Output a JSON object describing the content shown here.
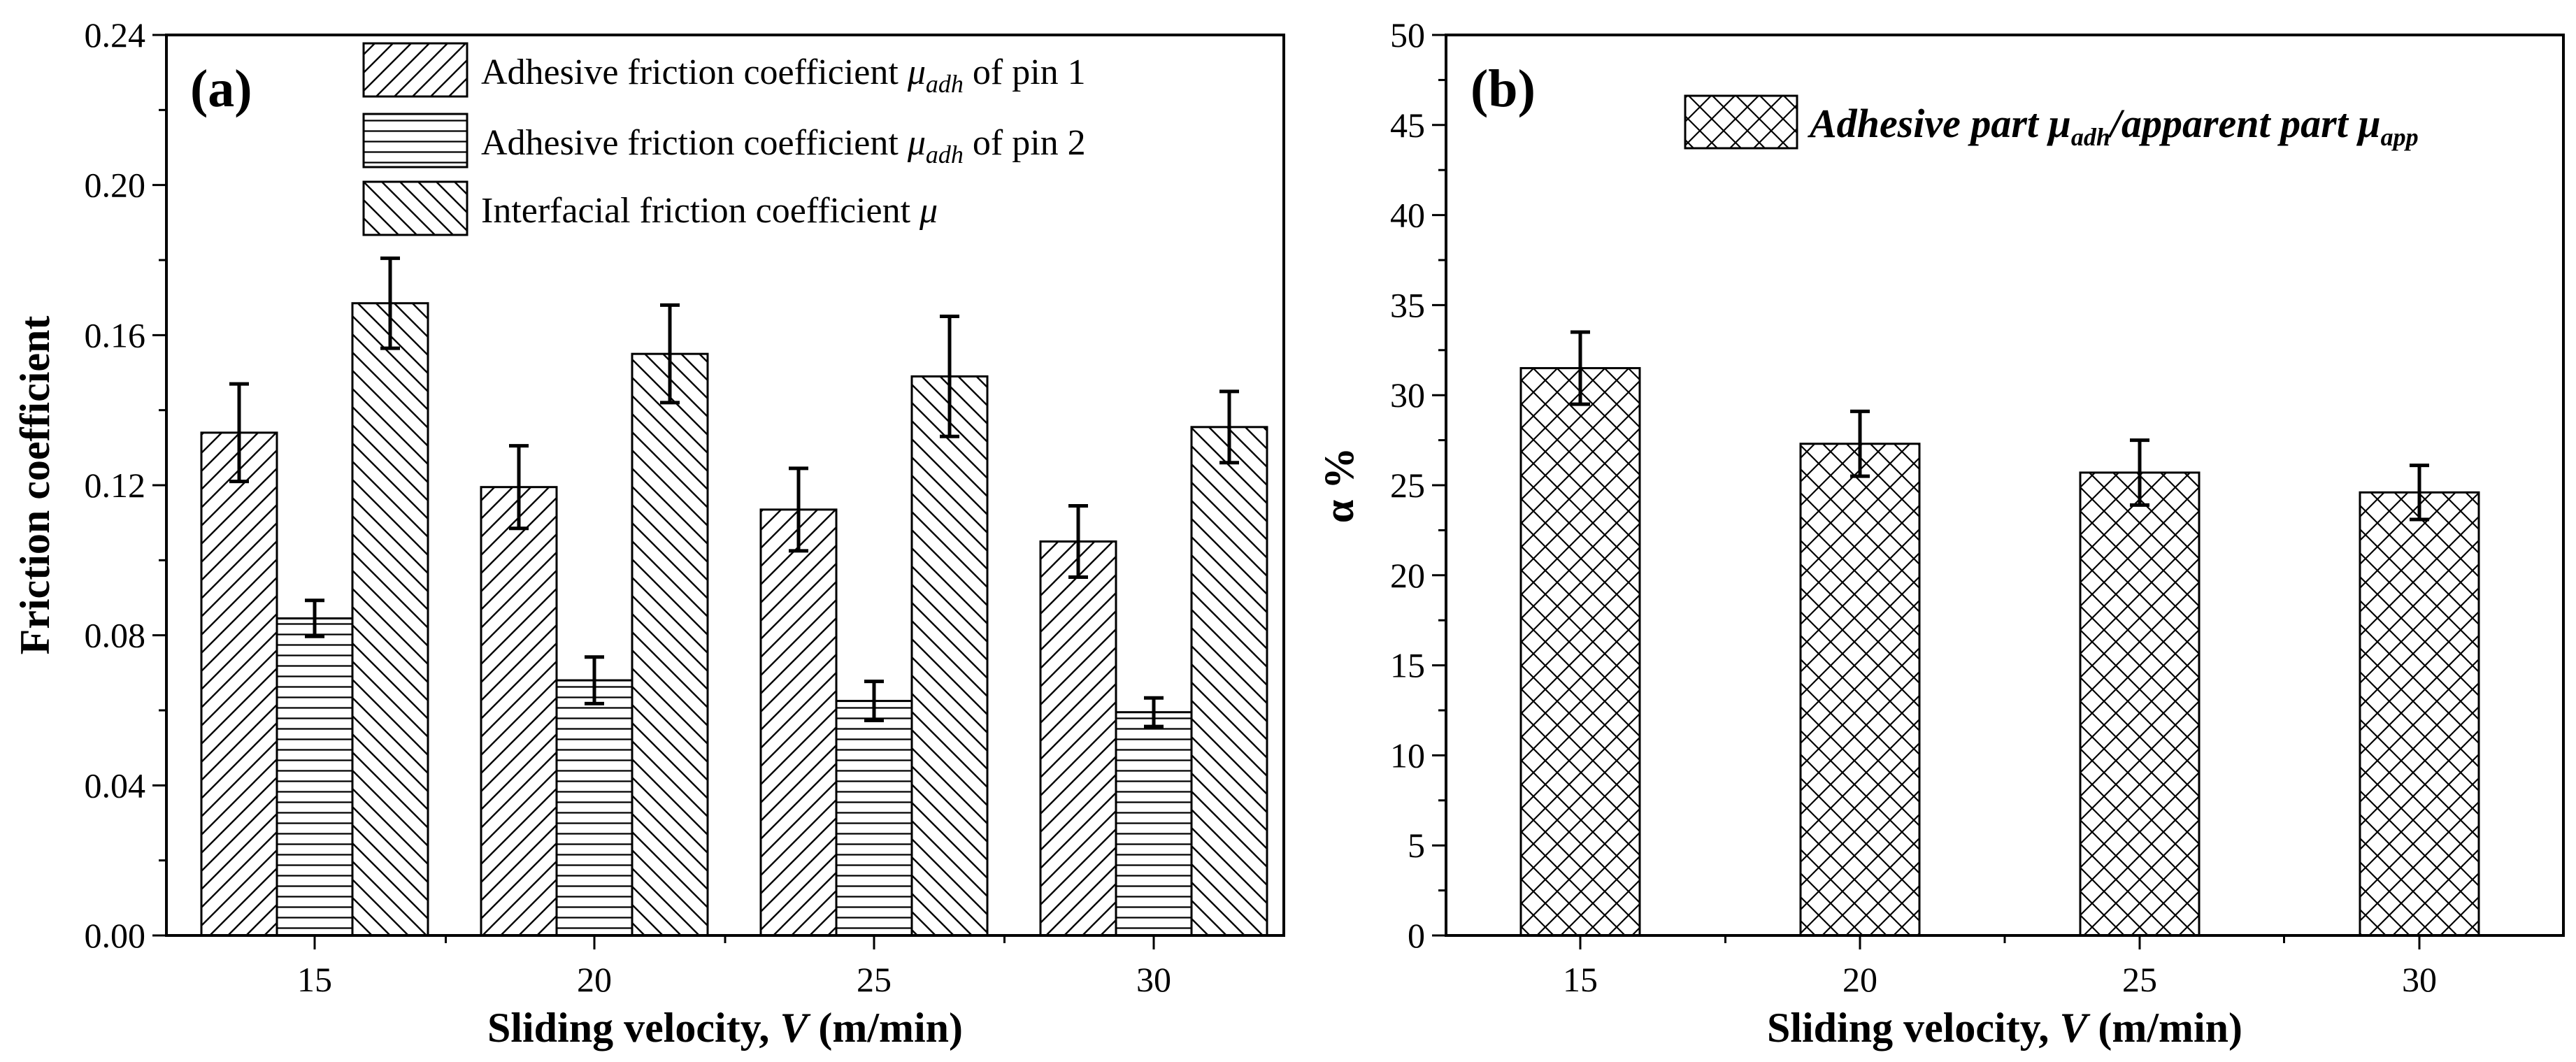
{
  "chart_data": [
    {
      "panel": "(a)",
      "type": "bar",
      "xlabel_prefix": "Sliding velocity, ",
      "xlabel_var": "V",
      "xlabel_suffix": " (m/min)",
      "ylabel": "Friction coefficient",
      "categories": [
        "15",
        "20",
        "25",
        "30"
      ],
      "ylim": [
        0,
        0.24
      ],
      "yticks": [
        "0.00",
        "0.04",
        "0.08",
        "0.12",
        "0.16",
        "0.20",
        "0.24"
      ],
      "legend_position": "top-right",
      "series": [
        {
          "name": "Adhesive friction coefficient μadh of pin 1",
          "legend_text": "Adhesive friction coefficient ",
          "legend_symbol": "μ",
          "legend_sub": "adh",
          "legend_tail": " of pin 1",
          "pattern": "diagonal-up",
          "values": [
            0.134,
            0.1195,
            0.1135,
            0.105
          ],
          "errors": [
            0.013,
            0.011,
            0.011,
            0.0095
          ]
        },
        {
          "name": "Adhesive friction coefficient μadh of pin 2",
          "legend_text": "Adhesive friction coefficient ",
          "legend_symbol": "μ",
          "legend_sub": "adh",
          "legend_tail": " of pin 2",
          "pattern": "horizontal",
          "values": [
            0.0845,
            0.068,
            0.0625,
            0.0595
          ],
          "errors": [
            0.0048,
            0.0062,
            0.0052,
            0.0038
          ]
        },
        {
          "name": "Interfacial friction coefficient μ",
          "legend_text": "Interfacial friction coefficient ",
          "legend_symbol": "μ",
          "legend_sub": "",
          "legend_tail": "",
          "pattern": "diagonal-down",
          "values": [
            0.1685,
            0.155,
            0.149,
            0.1355
          ],
          "errors": [
            0.012,
            0.013,
            0.016,
            0.0095
          ]
        }
      ]
    },
    {
      "panel": "(b)",
      "type": "bar",
      "xlabel_prefix": "Sliding velocity, ",
      "xlabel_var": "V",
      "xlabel_suffix": " (m/min)",
      "ylabel": "α %",
      "categories": [
        "15",
        "20",
        "25",
        "30"
      ],
      "ylim": [
        0,
        50
      ],
      "yticks": [
        "0",
        "5",
        "10",
        "15",
        "20",
        "25",
        "30",
        "35",
        "40",
        "45",
        "50"
      ],
      "legend_position": "top-right",
      "series": [
        {
          "name": "Adhesive part μadh/apparent part μapp",
          "legend_part1": "Adhesive part ",
          "legend_sym1": "μ",
          "legend_sub1": "adh",
          "legend_part2": "/apparent part ",
          "legend_sym2": "μ",
          "legend_sub2": "app",
          "pattern": "crosshatch",
          "values": [
            31.5,
            27.3,
            25.7,
            24.6
          ],
          "errors": [
            2.0,
            1.8,
            1.8,
            1.5
          ]
        }
      ]
    }
  ]
}
